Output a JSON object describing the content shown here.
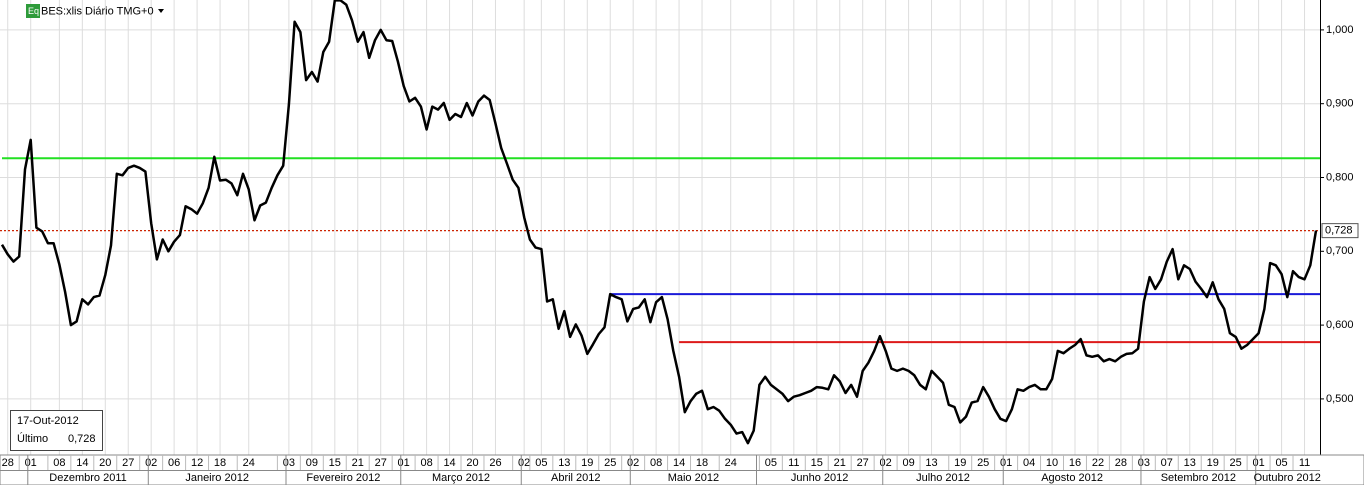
{
  "chart_data": {
    "type": "line",
    "title": "BES:xlis Diário TMG+0",
    "icon": "Eq",
    "categories": [
      null,
      "28",
      null,
      null,
      null,
      "01",
      null,
      null,
      null,
      null,
      "08",
      null,
      null,
      null,
      "14",
      null,
      null,
      null,
      "20",
      null,
      null,
      null,
      "27",
      null,
      null,
      null,
      "02",
      null,
      null,
      null,
      "06",
      null,
      null,
      null,
      "12",
      null,
      null,
      null,
      "18",
      null,
      null,
      null,
      null,
      "24",
      null,
      null,
      null,
      null,
      null,
      null,
      "03",
      null,
      null,
      null,
      "09",
      null,
      null,
      null,
      "15",
      null,
      null,
      null,
      "21",
      null,
      null,
      null,
      "27",
      null,
      null,
      null,
      "01",
      null,
      null,
      null,
      "08",
      null,
      null,
      null,
      "14",
      null,
      null,
      null,
      "20",
      null,
      null,
      null,
      "26",
      null,
      null,
      null,
      null,
      "02",
      null,
      null,
      "05",
      null,
      null,
      null,
      "13",
      null,
      null,
      null,
      "19",
      null,
      null,
      null,
      "25",
      null,
      null,
      null,
      "02",
      null,
      null,
      null,
      "08",
      null,
      null,
      null,
      "14",
      null,
      null,
      null,
      "18",
      null,
      null,
      null,
      null,
      "24",
      null,
      null,
      null,
      null,
      null,
      null,
      "05",
      null,
      null,
      null,
      "11",
      null,
      null,
      null,
      "15",
      null,
      null,
      null,
      "21",
      null,
      null,
      null,
      "27",
      null,
      null,
      null,
      "02",
      null,
      null,
      null,
      "09",
      null,
      null,
      null,
      "13",
      null,
      null,
      null,
      null,
      "19",
      null,
      null,
      null,
      "25",
      null,
      null,
      null,
      "01",
      null,
      null,
      null,
      "04",
      null,
      null,
      null,
      "10",
      null,
      null,
      null,
      "16",
      null,
      null,
      null,
      "22",
      null,
      null,
      null,
      "28",
      null,
      null,
      null,
      "03",
      null,
      null,
      null,
      "07",
      null,
      null,
      null,
      "13",
      null,
      null,
      null,
      "19",
      null,
      null,
      null,
      "25",
      null,
      null,
      null,
      "01",
      null,
      null,
      null,
      "05",
      null,
      null,
      null,
      "11",
      null,
      null
    ],
    "month_categories": [
      null,
      null,
      null,
      null,
      null,
      "Dezembro 2011",
      null,
      null,
      null,
      null,
      null,
      null,
      null,
      null,
      null,
      null,
      null,
      null,
      null,
      null,
      null,
      null,
      null,
      null,
      null,
      null,
      "Janeiro 2012",
      null,
      null,
      null,
      null,
      null,
      null,
      null,
      null,
      null,
      null,
      null,
      null,
      null,
      null,
      null,
      null,
      null,
      null,
      null,
      null,
      null,
      null,
      null,
      "Fevereiro 2012",
      null,
      null,
      null,
      null,
      null,
      null,
      null,
      null,
      null,
      null,
      null,
      null,
      null,
      null,
      null,
      null,
      null,
      null,
      null,
      "Março 2012",
      null,
      null,
      null,
      null,
      null,
      null,
      null,
      null,
      null,
      null,
      null,
      null,
      null,
      null,
      null,
      null,
      null,
      null,
      null,
      null,
      "Abril 2012",
      null,
      null,
      null,
      null,
      null,
      null,
      null,
      null,
      null,
      null,
      null,
      null,
      null,
      null,
      null,
      null,
      null,
      null,
      "Maio 2012",
      null,
      null,
      null,
      null,
      null,
      null,
      null,
      null,
      null,
      null,
      null,
      null,
      null,
      null,
      null,
      null,
      null,
      null,
      null,
      null,
      null,
      "Junho 2012",
      null,
      null,
      null,
      null,
      null,
      null,
      null,
      null,
      null,
      null,
      null,
      null,
      null,
      null,
      null,
      null,
      null,
      null,
      null,
      null,
      null,
      "Julho 2012",
      null,
      null,
      null,
      null,
      null,
      null,
      null,
      null,
      null,
      null,
      null,
      null,
      null,
      null,
      null,
      null,
      null,
      null,
      null,
      null,
      "Agosto 2012",
      null,
      null,
      null,
      null,
      null,
      null,
      null,
      null,
      null,
      null,
      null,
      null,
      null,
      null,
      null,
      null,
      null,
      null,
      null,
      null,
      null,
      null,
      null,
      "Setembro 2012",
      null,
      null,
      null,
      null,
      null,
      null,
      null,
      null,
      null,
      null,
      null,
      null,
      null,
      null,
      null,
      null,
      null,
      null,
      null,
      "Outubro 2012",
      null,
      null,
      null,
      null,
      null,
      null,
      null,
      null,
      null,
      null
    ],
    "series": [
      {
        "color": "#000000",
        "values": [
          0.709,
          0.696,
          0.686,
          0.693,
          0.811,
          0.851,
          0.732,
          0.727,
          0.711,
          0.711,
          0.682,
          0.645,
          0.6,
          0.605,
          0.635,
          0.628,
          0.638,
          0.64,
          0.668,
          0.708,
          0.805,
          0.803,
          0.813,
          0.816,
          0.813,
          0.808,
          0.738,
          0.689,
          0.716,
          0.7,
          0.713,
          0.722,
          0.761,
          0.757,
          0.751,
          0.765,
          0.786,
          0.828,
          0.796,
          0.797,
          0.792,
          0.776,
          0.805,
          0.784,
          0.742,
          0.762,
          0.766,
          0.786,
          0.803,
          0.816,
          0.899,
          1.011,
          0.997,
          0.932,
          0.943,
          0.93,
          0.97,
          0.984,
          1.04,
          1.04,
          1.034,
          1.013,
          0.984,
          0.997,
          0.962,
          0.986,
          1.0,
          0.986,
          0.985,
          0.957,
          0.924,
          0.903,
          0.908,
          0.896,
          0.865,
          0.896,
          0.892,
          0.901,
          0.878,
          0.886,
          0.882,
          0.901,
          0.884,
          0.903,
          0.911,
          0.905,
          0.873,
          0.84,
          0.819,
          0.797,
          0.786,
          0.746,
          0.716,
          0.705,
          0.703,
          0.632,
          0.635,
          0.595,
          0.619,
          0.584,
          0.601,
          0.586,
          0.561,
          0.574,
          0.588,
          0.597,
          0.642,
          0.638,
          0.635,
          0.605,
          0.622,
          0.624,
          0.635,
          0.604,
          0.631,
          0.638,
          0.608,
          0.565,
          0.53,
          0.482,
          0.497,
          0.507,
          0.511,
          0.486,
          0.489,
          0.484,
          0.473,
          0.465,
          0.453,
          0.455,
          0.44,
          0.457,
          0.519,
          0.53,
          0.519,
          0.513,
          0.507,
          0.497,
          0.503,
          0.505,
          0.508,
          0.511,
          0.516,
          0.515,
          0.513,
          0.532,
          0.524,
          0.508,
          0.519,
          0.503,
          0.538,
          0.549,
          0.565,
          0.585,
          0.565,
          0.541,
          0.538,
          0.541,
          0.538,
          0.532,
          0.519,
          0.513,
          0.538,
          0.53,
          0.522,
          0.492,
          0.489,
          0.468,
          0.476,
          0.495,
          0.497,
          0.516,
          0.503,
          0.486,
          0.473,
          0.47,
          0.486,
          0.513,
          0.511,
          0.516,
          0.519,
          0.513,
          0.513,
          0.527,
          0.565,
          0.562,
          0.568,
          0.573,
          0.581,
          0.559,
          0.557,
          0.559,
          0.551,
          0.554,
          0.551,
          0.557,
          0.561,
          0.562,
          0.568,
          0.632,
          0.665,
          0.649,
          0.662,
          0.686,
          0.703,
          0.662,
          0.681,
          0.676,
          0.659,
          0.649,
          0.638,
          0.658,
          0.635,
          0.622,
          0.589,
          0.584,
          0.568,
          0.573,
          0.581,
          0.589,
          0.622,
          0.684,
          0.681,
          0.669,
          0.638,
          0.673,
          0.665,
          0.662,
          0.681,
          0.728
        ]
      }
    ],
    "ylim": [
      0.424,
      1.0405
    ],
    "yticks": [
      {
        "value": 0.5,
        "label": "0,500"
      },
      {
        "value": 0.6,
        "label": "0,600"
      },
      {
        "value": 0.7,
        "label": "0,700"
      },
      {
        "value": 0.8,
        "label": "0,800"
      },
      {
        "value": 0.9,
        "label": "0,900"
      },
      {
        "value": 1,
        "label": "1,000"
      }
    ],
    "grid": true,
    "hlines": [
      {
        "value": 0.826,
        "color": "#22e022",
        "start": 0
      },
      {
        "value": 0.642,
        "color": "#1a1ad8",
        "start": 106
      },
      {
        "value": 0.577,
        "color": "#dd1a1a",
        "start": 118
      }
    ],
    "last_price": {
      "value": 0.728,
      "label": "0,728",
      "color": "#cc2200"
    },
    "info": {
      "date": "17-Out-2012",
      "label": "Último",
      "value": {
        "value": 0.728,
        "label": "0,728"
      }
    }
  }
}
